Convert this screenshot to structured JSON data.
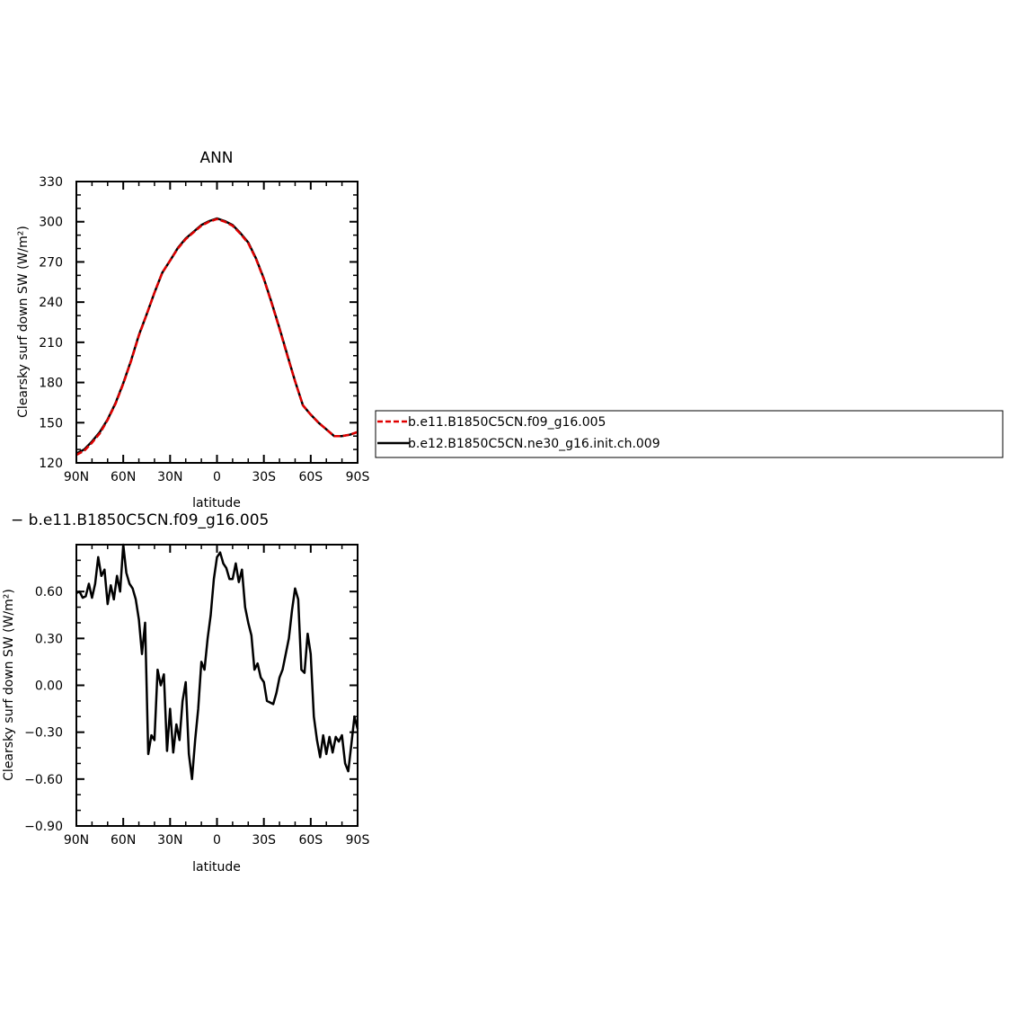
{
  "chart_data": [
    {
      "type": "line",
      "title": "ANN",
      "xlabel": "latitude",
      "ylabel": "Clearsky surf down SW (W/m²)",
      "xlim": [
        90,
        -90
      ],
      "ylim": [
        120,
        330
      ],
      "xticks": [
        90,
        60,
        30,
        0,
        -30,
        -60,
        -90
      ],
      "xtick_labels": [
        "90N",
        "60N",
        "30N",
        "0",
        "30S",
        "60S",
        "90S"
      ],
      "yticks": [
        120,
        150,
        180,
        210,
        240,
        270,
        300,
        330
      ],
      "ytick_labels": [
        "120",
        "150",
        "180",
        "210",
        "240",
        "270",
        "300",
        "330"
      ],
      "series": [
        {
          "name": "b.e11.B1850C5CN.f09_g16.005",
          "color": "#e00000",
          "dash": "dashed",
          "x": [
            90,
            85,
            80,
            75,
            70,
            65,
            60,
            55,
            50,
            45,
            40,
            35,
            30,
            25,
            20,
            15,
            10,
            5,
            0,
            -5,
            -10,
            -15,
            -20,
            -25,
            -30,
            -35,
            -40,
            -45,
            -50,
            -55,
            -60,
            -65,
            -70,
            -75,
            -80,
            -85,
            -90
          ],
          "y": [
            126,
            129,
            135,
            142,
            152,
            164,
            179,
            196,
            215,
            231,
            247,
            262,
            271,
            280,
            287,
            292,
            297,
            300,
            302,
            300,
            297,
            291,
            284,
            272,
            257,
            239,
            220,
            200,
            181,
            163,
            156,
            150,
            145,
            140,
            140,
            141,
            143
          ]
        },
        {
          "name": "b.e12.B1850C5CN.ne30_g16.init.ch.009",
          "color": "#000000",
          "dash": "solid",
          "x": [
            90,
            85,
            80,
            75,
            70,
            65,
            60,
            55,
            50,
            45,
            40,
            35,
            30,
            25,
            20,
            15,
            10,
            5,
            0,
            -5,
            -10,
            -15,
            -20,
            -25,
            -30,
            -35,
            -40,
            -45,
            -50,
            -55,
            -60,
            -65,
            -70,
            -75,
            -80,
            -85,
            -90
          ],
          "y": [
            127,
            130,
            136,
            143,
            152.5,
            164.5,
            179.5,
            196.5,
            215.5,
            231,
            247,
            262,
            271,
            280.5,
            287.5,
            292.5,
            297.5,
            300.5,
            302.5,
            300.5,
            297.5,
            291.5,
            284.5,
            272.5,
            257.5,
            239.5,
            220.5,
            200.5,
            181,
            163,
            156,
            150,
            145,
            140,
            140,
            141,
            143
          ]
        }
      ],
      "legend": "right"
    },
    {
      "type": "line",
      "title": "− b.e11.B1850C5CN.f09_g16.005",
      "xlabel": "latitude",
      "ylabel": "Clearsky surf down SW (W/m²)",
      "xlim": [
        90,
        -90
      ],
      "ylim": [
        -0.9,
        0.9
      ],
      "xticks": [
        90,
        60,
        30,
        0,
        -30,
        -60,
        -90
      ],
      "xtick_labels": [
        "90N",
        "60N",
        "30N",
        "0",
        "30S",
        "60S",
        "90S"
      ],
      "yticks": [
        -0.9,
        -0.6,
        -0.3,
        0.0,
        0.3,
        0.6
      ],
      "ytick_labels": [
        "−0.90",
        "−0.60",
        "−0.30",
        "0.00",
        "0.30",
        "0.60"
      ],
      "series": [
        {
          "color": "#000000",
          "dash": "solid",
          "x": [
            90,
            88,
            86,
            84,
            82,
            80,
            78,
            76,
            74,
            72,
            70,
            68,
            66,
            64,
            62,
            60,
            58,
            56,
            54,
            52,
            50,
            48,
            46,
            44,
            42,
            40,
            38,
            36,
            34,
            32,
            30,
            28,
            26,
            24,
            22,
            20,
            18,
            16,
            14,
            12,
            10,
            8,
            6,
            4,
            2,
            0,
            -2,
            -4,
            -6,
            -8,
            -10,
            -12,
            -14,
            -16,
            -18,
            -20,
            -22,
            -24,
            -26,
            -28,
            -30,
            -32,
            -34,
            -36,
            -38,
            -40,
            -42,
            -44,
            -46,
            -48,
            -50,
            -52,
            -54,
            -56,
            -58,
            -60,
            -62,
            -64,
            -66,
            -68,
            -70,
            -72,
            -74,
            -76,
            -78,
            -80,
            -82,
            -84,
            -86,
            -88,
            -90
          ],
          "y": [
            0.59,
            0.6,
            0.56,
            0.57,
            0.65,
            0.56,
            0.65,
            0.82,
            0.7,
            0.74,
            0.52,
            0.64,
            0.55,
            0.7,
            0.6,
            0.9,
            0.72,
            0.65,
            0.62,
            0.55,
            0.42,
            0.2,
            0.4,
            -0.44,
            -0.32,
            -0.35,
            0.1,
            0.0,
            0.07,
            -0.42,
            -0.15,
            -0.43,
            -0.25,
            -0.35,
            -0.1,
            0.02,
            -0.44,
            -0.6,
            -0.35,
            -0.15,
            0.15,
            0.1,
            0.3,
            0.45,
            0.68,
            0.82,
            0.85,
            0.78,
            0.75,
            0.68,
            0.68,
            0.78,
            0.66,
            0.74,
            0.5,
            0.4,
            0.32,
            0.1,
            0.14,
            0.05,
            0.02,
            -0.1,
            -0.11,
            -0.12,
            -0.05,
            0.05,
            0.1,
            0.2,
            0.3,
            0.48,
            0.62,
            0.55,
            0.1,
            0.08,
            0.33,
            0.2,
            -0.2,
            -0.35,
            -0.46,
            -0.32,
            -0.44,
            -0.33,
            -0.43,
            -0.33,
            -0.36,
            -0.32,
            -0.5,
            -0.55,
            -0.38,
            -0.2,
            -0.28
          ]
        }
      ]
    }
  ]
}
